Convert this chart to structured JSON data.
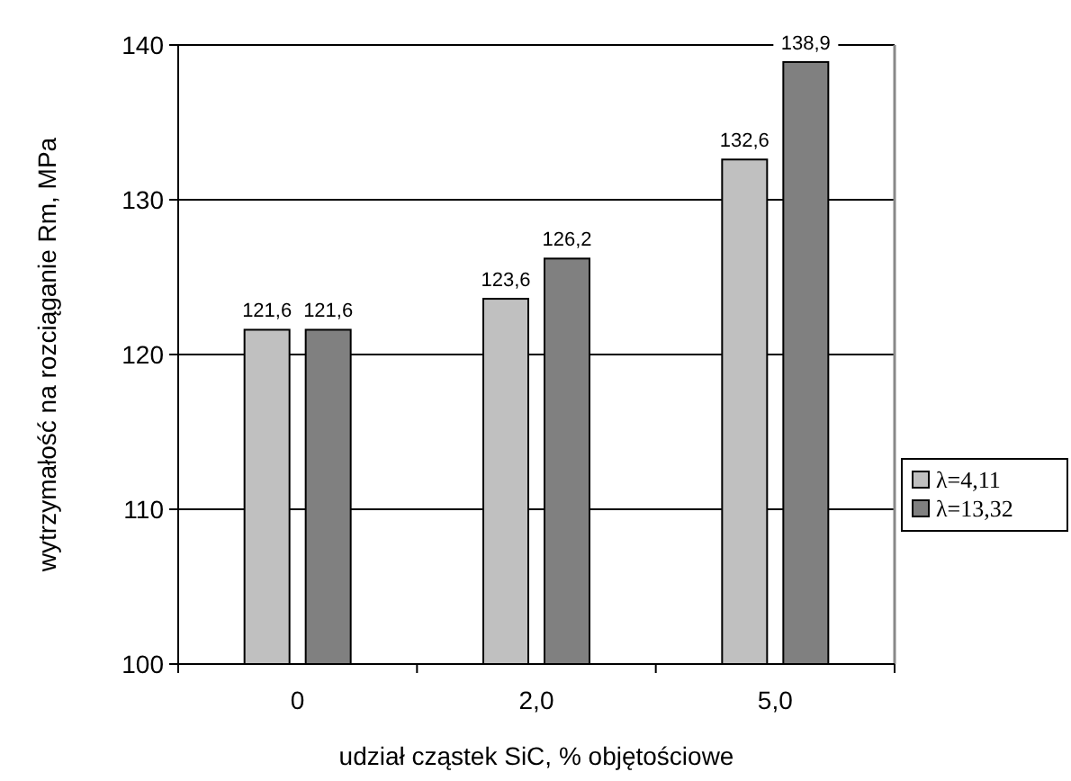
{
  "chart_data": {
    "type": "bar",
    "xlabel": "udział cząstek SiC, % objętościowe",
    "ylabel": "wytrzymałość na rozciąganie Rm, MPa",
    "categories": [
      "0",
      "2,0",
      "5,0"
    ],
    "series": [
      {
        "name": "λ=4,11",
        "color": "#c0c0c0",
        "values": [
          121.6,
          123.6,
          132.6
        ],
        "value_labels": [
          "121,6",
          "123,6",
          "132,6"
        ]
      },
      {
        "name": "λ=13,32",
        "color": "#808080",
        "values": [
          121.6,
          126.2,
          138.9
        ],
        "value_labels": [
          "121,6",
          "126,2",
          "138,9"
        ]
      }
    ],
    "ylim": [
      100,
      140
    ],
    "yticks": [
      100,
      110,
      120,
      130,
      140
    ],
    "grid": "y",
    "legend": "right"
  }
}
